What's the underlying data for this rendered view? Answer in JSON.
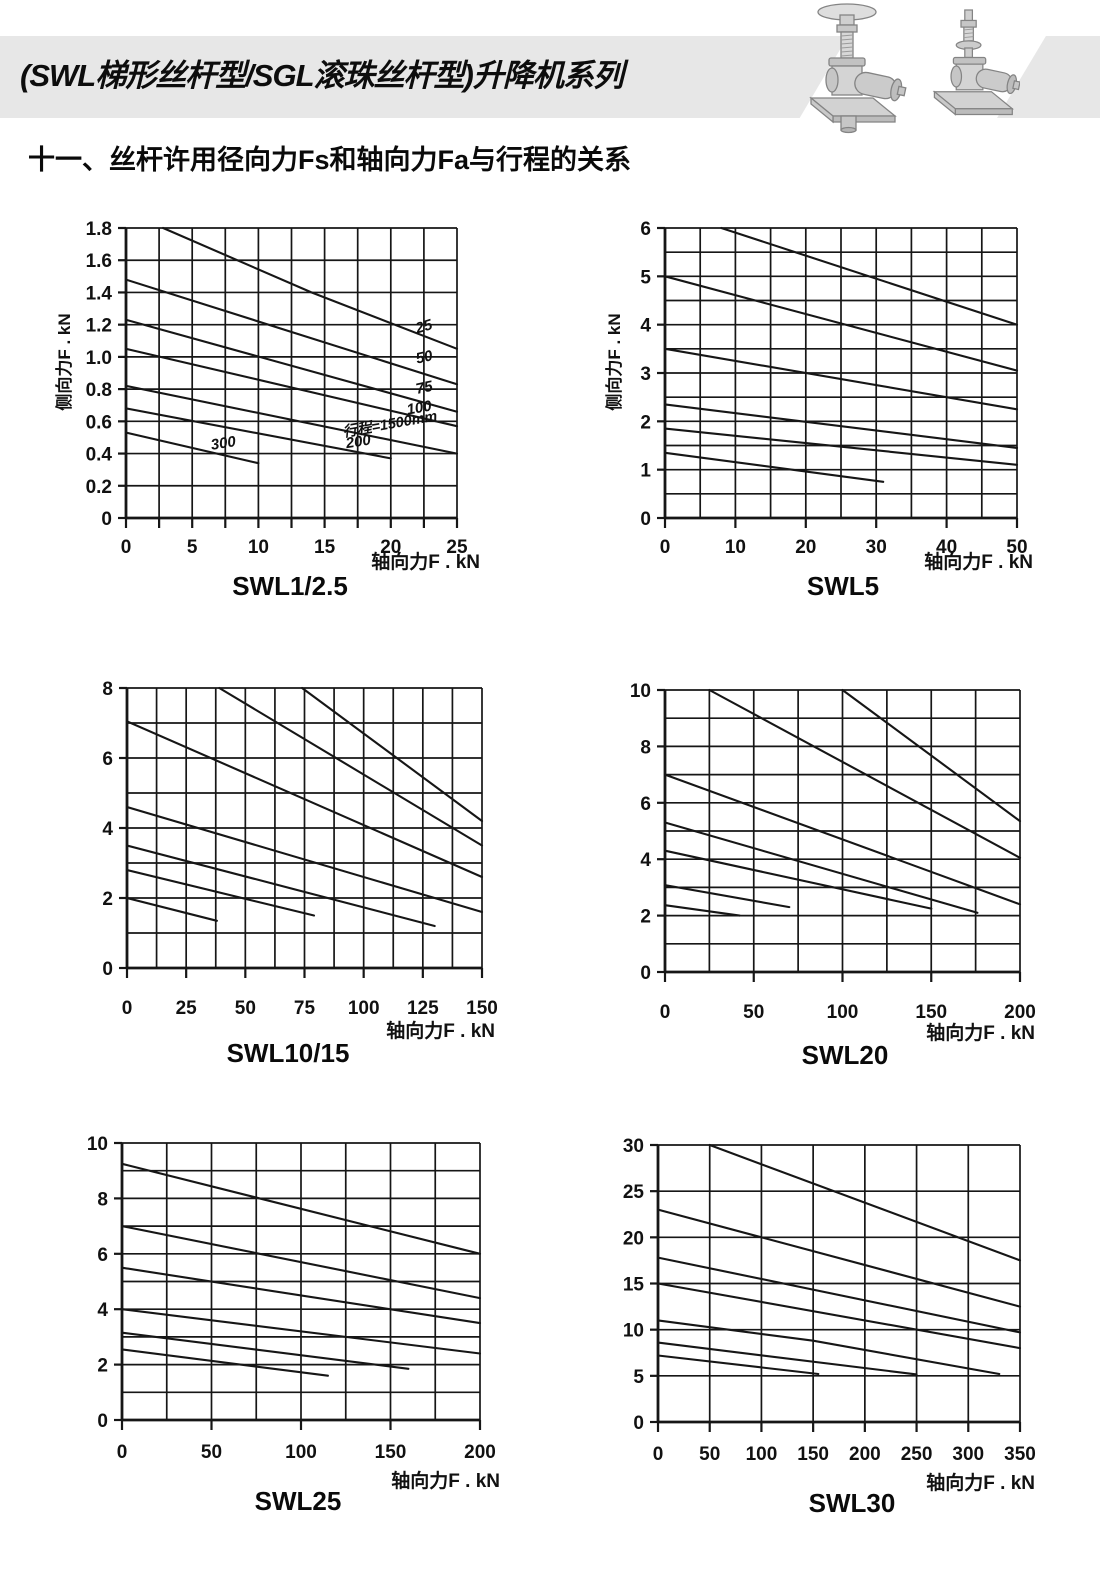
{
  "header": {
    "title": "(SWL梯形丝杆型/SGL滚珠丝杆型)升降机系列"
  },
  "section_title": "十一、丝杆许用径向力Fs和轴向力Fa与行程的关系",
  "icons": {
    "machine_left": "screw-jack-with-handwheel",
    "machine_right": "screw-jack-with-input-shaft"
  },
  "colors": {
    "banner": "#e7e7e7",
    "ink": "#161616",
    "machine_gray": "#cfcfcf"
  },
  "chart_data": [
    {
      "type": "line",
      "name": "SWL1/2.5",
      "xlabel": "轴向力F . kN",
      "ylabel": "侧向力F . kN",
      "xlim": [
        0,
        25
      ],
      "ylim": [
        0,
        1.8
      ],
      "x_grid_step": 2.5,
      "y_grid_step": 0.2,
      "x_tick_marks": "grid",
      "x_ticks": [
        "0",
        "5",
        "10",
        "15",
        "20",
        "25"
      ],
      "y_ticks": [
        "0",
        "0.2",
        "0.4",
        "0.6",
        "0.8",
        "1.0",
        "1.2",
        "1.4",
        "1.6",
        "1.8"
      ],
      "grid": true,
      "legend": "labels-on-lines",
      "series": [
        {
          "label": "25",
          "points": [
            [
              2.8,
              1.8
            ],
            [
              14,
              1.4
            ],
            [
              25,
              1.05
            ]
          ],
          "label_pos": [
            22.6,
            1.16
          ],
          "label_angle": -17
        },
        {
          "label": "50",
          "points": [
            [
              0,
              1.48
            ],
            [
              25,
              0.83
            ]
          ],
          "label_pos": [
            22.6,
            0.97
          ],
          "label_angle": -13
        },
        {
          "label": "75",
          "points": [
            [
              0,
              1.23
            ],
            [
              25,
              0.66
            ]
          ],
          "label_pos": [
            22.6,
            0.78
          ],
          "label_angle": -12
        },
        {
          "label": "100",
          "points": [
            [
              0,
              1.05
            ],
            [
              25,
              0.57
            ]
          ],
          "label_pos": [
            22.2,
            0.655
          ],
          "label_angle": -10
        },
        {
          "label": "行程=1500mm",
          "points": [
            [
              0,
              0.82
            ],
            [
              25,
              0.4
            ]
          ],
          "label_pos": [
            20.0,
            0.555
          ],
          "label_angle": -10
        },
        {
          "label": "200",
          "points": [
            [
              0,
              0.68
            ],
            [
              20,
              0.37
            ]
          ],
          "label_pos": [
            17.6,
            0.445
          ],
          "label_angle": -9
        },
        {
          "label": "300",
          "points": [
            [
              0,
              0.53
            ],
            [
              10,
              0.34
            ]
          ],
          "label_pos": [
            7.4,
            0.435
          ],
          "label_angle": -9
        }
      ]
    },
    {
      "type": "line",
      "name": "SWL5",
      "xlabel": "轴向力F . kN",
      "ylabel": "侧向力F . kN",
      "xlim": [
        0,
        50
      ],
      "ylim": [
        0,
        6
      ],
      "x_grid_step": 5,
      "y_grid_step": 0.5,
      "x_tick_marks": "labels",
      "x_ticks": [
        "0",
        "10",
        "20",
        "30",
        "40",
        "50"
      ],
      "y_ticks": [
        "0",
        "1",
        "2",
        "3",
        "4",
        "5",
        "6"
      ],
      "grid": true,
      "legend": "none",
      "series": [
        {
          "label": null,
          "points": [
            [
              8,
              6.0
            ],
            [
              50,
              4.0
            ]
          ]
        },
        {
          "label": null,
          "points": [
            [
              0,
              5.0
            ],
            [
              50,
              3.05
            ]
          ]
        },
        {
          "label": null,
          "points": [
            [
              0,
              3.5
            ],
            [
              50,
              2.25
            ]
          ]
        },
        {
          "label": null,
          "points": [
            [
              0,
              2.35
            ],
            [
              50,
              1.45
            ]
          ]
        },
        {
          "label": null,
          "points": [
            [
              0,
              1.85
            ],
            [
              50,
              1.1
            ]
          ]
        },
        {
          "label": null,
          "points": [
            [
              0,
              1.35
            ],
            [
              31,
              0.75
            ]
          ]
        }
      ]
    },
    {
      "type": "line",
      "name": "SWL10/15",
      "xlabel": "轴向力F . kN",
      "ylabel": null,
      "xlim": [
        0,
        150
      ],
      "ylim": [
        0,
        8
      ],
      "x_grid_step": 12.5,
      "y_grid_step": 1,
      "x_tick_marks": "labels",
      "x_ticks": [
        "0",
        "25",
        "50",
        "75",
        "100",
        "125",
        "150"
      ],
      "y_ticks": [
        "0",
        "2",
        "4",
        "6",
        "8"
      ],
      "grid": true,
      "legend": "none",
      "series": [
        {
          "label": null,
          "points": [
            [
              74,
              8.0
            ],
            [
              150,
              4.2
            ]
          ]
        },
        {
          "label": null,
          "points": [
            [
              39,
              8.0
            ],
            [
              150,
              3.5
            ]
          ]
        },
        {
          "label": null,
          "points": [
            [
              0,
              7.05
            ],
            [
              150,
              2.6
            ]
          ]
        },
        {
          "label": null,
          "points": [
            [
              0,
              4.6
            ],
            [
              150,
              1.6
            ]
          ]
        },
        {
          "label": null,
          "points": [
            [
              0,
              3.5
            ],
            [
              130,
              1.2
            ]
          ]
        },
        {
          "label": null,
          "points": [
            [
              0,
              2.8
            ],
            [
              79,
              1.5
            ]
          ]
        },
        {
          "label": null,
          "points": [
            [
              0,
              2.0
            ],
            [
              38,
              1.35
            ]
          ]
        }
      ]
    },
    {
      "type": "line",
      "name": "SWL20",
      "xlabel": "轴向力F . kN",
      "ylabel": null,
      "xlim": [
        0,
        200
      ],
      "ylim": [
        0,
        10
      ],
      "x_grid_step": 25,
      "y_grid_step": 1,
      "x_tick_marks": "labels",
      "x_ticks": [
        "0",
        "50",
        "100",
        "150",
        "200"
      ],
      "y_ticks": [
        "0",
        "2",
        "4",
        "6",
        "8",
        "10"
      ],
      "grid": true,
      "legend": "none",
      "series": [
        {
          "label": null,
          "points": [
            [
              100,
              10.0
            ],
            [
              200,
              5.35
            ]
          ]
        },
        {
          "label": null,
          "points": [
            [
              25,
              10.0
            ],
            [
              200,
              4.05
            ]
          ]
        },
        {
          "label": null,
          "points": [
            [
              0,
              7.0
            ],
            [
              200,
              2.4
            ]
          ]
        },
        {
          "label": null,
          "points": [
            [
              0,
              5.3
            ],
            [
              176,
              2.1
            ]
          ]
        },
        {
          "label": null,
          "points": [
            [
              0,
              4.3
            ],
            [
              150,
              2.25
            ]
          ]
        },
        {
          "label": null,
          "points": [
            [
              0,
              3.08
            ],
            [
              70,
              2.3
            ]
          ]
        },
        {
          "label": null,
          "points": [
            [
              0,
              2.37
            ],
            [
              42,
              2.0
            ]
          ]
        }
      ]
    },
    {
      "type": "line",
      "name": "SWL25",
      "xlabel": "轴向力F . kN",
      "ylabel": null,
      "xlim": [
        0,
        200
      ],
      "ylim": [
        0,
        10
      ],
      "x_grid_step": 25,
      "y_grid_step": 1,
      "x_tick_marks": "labels",
      "x_ticks": [
        "0",
        "50",
        "100",
        "150",
        "200"
      ],
      "y_ticks": [
        "0",
        "2",
        "4",
        "6",
        "8",
        "10"
      ],
      "grid": true,
      "legend": "none",
      "series": [
        {
          "label": null,
          "points": [
            [
              0,
              9.25
            ],
            [
              200,
              6.0
            ]
          ]
        },
        {
          "label": null,
          "points": [
            [
              0,
              7.0
            ],
            [
              200,
              4.4
            ]
          ]
        },
        {
          "label": null,
          "points": [
            [
              0,
              5.5
            ],
            [
              200,
              3.5
            ]
          ]
        },
        {
          "label": null,
          "points": [
            [
              0,
              4.0
            ],
            [
              200,
              2.4
            ]
          ]
        },
        {
          "label": null,
          "points": [
            [
              0,
              3.15
            ],
            [
              160,
              1.85
            ]
          ]
        },
        {
          "label": null,
          "points": [
            [
              0,
              2.55
            ],
            [
              115,
              1.6
            ]
          ]
        }
      ]
    },
    {
      "type": "line",
      "name": "SWL30",
      "xlabel": "轴向力F . kN",
      "ylabel": null,
      "xlim": [
        0,
        350
      ],
      "ylim": [
        0,
        30
      ],
      "x_grid_step": 50,
      "y_grid_step": 5,
      "x_tick_marks": "labels",
      "x_ticks": [
        "0",
        "50",
        "100",
        "150",
        "200",
        "250",
        "300",
        "350"
      ],
      "y_ticks": [
        "0",
        "5",
        "10",
        "15",
        "20",
        "25",
        "30"
      ],
      "grid": true,
      "legend": "none",
      "series": [
        {
          "label": null,
          "points": [
            [
              50,
              30.0
            ],
            [
              350,
              17.5
            ]
          ]
        },
        {
          "label": null,
          "points": [
            [
              0,
              23.0
            ],
            [
              350,
              12.5
            ]
          ]
        },
        {
          "label": null,
          "points": [
            [
              0,
              17.8
            ],
            [
              350,
              9.7
            ]
          ]
        },
        {
          "label": null,
          "points": [
            [
              0,
              15.0
            ],
            [
              350,
              8.0
            ]
          ]
        },
        {
          "label": null,
          "points": [
            [
              0,
              11.0
            ],
            [
              150,
              8.8
            ],
            [
              330,
              5.2
            ]
          ]
        },
        {
          "label": null,
          "points": [
            [
              0,
              8.6
            ],
            [
              250,
              5.15
            ]
          ]
        },
        {
          "label": null,
          "points": [
            [
              0,
              7.2
            ],
            [
              155,
              5.2
            ]
          ]
        }
      ]
    }
  ]
}
